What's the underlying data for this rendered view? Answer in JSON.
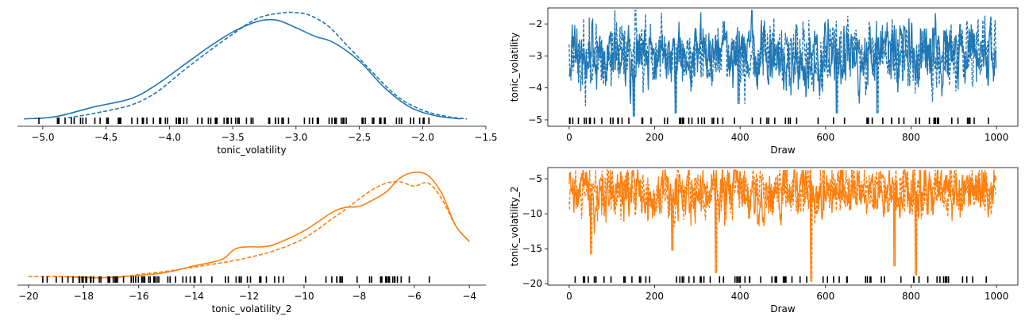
{
  "chart_data": [
    {
      "type": "area",
      "subtype": "kde",
      "xlabel": "tonic_volatility",
      "ylabel": "",
      "xlim": [
        -5.2,
        -1.5
      ],
      "ylim": [
        0,
        1.0
      ],
      "xticks": [
        -5.0,
        -4.5,
        -4.0,
        -3.5,
        -3.0,
        -2.5,
        -2.0,
        -1.5
      ],
      "xtick_labels": [
        "−5.0",
        "−4.5",
        "−4.0",
        "−3.5",
        "−3.0",
        "−2.5",
        "−2.0",
        "−1.5"
      ],
      "grid": false,
      "color": "#1f77b4",
      "series": [
        {
          "style": "solid",
          "x": [
            -5.15,
            -4.9,
            -4.6,
            -4.3,
            -4.1,
            -3.9,
            -3.7,
            -3.5,
            -3.3,
            -3.15,
            -3.0,
            -2.85,
            -2.7,
            -2.5,
            -2.3,
            -2.1,
            -1.9,
            -1.7
          ],
          "y": [
            0.01,
            0.03,
            0.12,
            0.2,
            0.33,
            0.5,
            0.67,
            0.82,
            0.92,
            0.93,
            0.86,
            0.78,
            0.72,
            0.55,
            0.3,
            0.12,
            0.04,
            0.01
          ]
        },
        {
          "style": "dashed",
          "x": [
            -4.8,
            -4.6,
            -4.3,
            -4.1,
            -3.9,
            -3.7,
            -3.5,
            -3.3,
            -3.1,
            -3.0,
            -2.9,
            -2.75,
            -2.6,
            -2.4,
            -2.2,
            -2.0,
            -1.8,
            -1.65
          ],
          "y": [
            0.02,
            0.06,
            0.14,
            0.26,
            0.45,
            0.63,
            0.8,
            0.95,
            1.0,
            1.0,
            0.98,
            0.88,
            0.7,
            0.45,
            0.22,
            0.09,
            0.03,
            0.01
          ]
        }
      ],
      "rug_ticks": 98
    },
    {
      "type": "line",
      "subtype": "trace",
      "xlabel": "Draw",
      "ylabel": "tonic_volatility",
      "xlim": [
        -50,
        1050
      ],
      "ylim": [
        -5.2,
        -1.5
      ],
      "xticks": [
        0,
        200,
        400,
        600,
        800,
        1000
      ],
      "xtick_labels": [
        "0",
        "200",
        "400",
        "600",
        "800",
        "1000"
      ],
      "yticks": [
        -5,
        -4,
        -3,
        -2
      ],
      "ytick_labels": [
        "−5",
        "−4",
        "−3",
        "−2"
      ],
      "grid": false,
      "color": "#1f77b4",
      "draws": 1000,
      "center": -3.0,
      "spread": 0.45,
      "low_spikes": [
        [
          150,
          -4.9
        ],
        [
          248,
          -4.8
        ],
        [
          395,
          -4.5
        ],
        [
          625,
          -4.8
        ],
        [
          720,
          -4.8
        ]
      ],
      "rug_ticks": 75
    },
    {
      "type": "area",
      "subtype": "kde",
      "xlabel": "tonic_volatility_2",
      "ylabel": "",
      "xlim": [
        -20.4,
        -3.4
      ],
      "ylim": [
        0,
        1.0
      ],
      "xticks": [
        -20,
        -18,
        -16,
        -14,
        -12,
        -10,
        -8,
        -6,
        -4
      ],
      "xtick_labels": [
        "−20",
        "−18",
        "−16",
        "−14",
        "−12",
        "−10",
        "−8",
        "−6",
        "−4"
      ],
      "grid": false,
      "color": "#ff7f0e",
      "series": [
        {
          "style": "solid",
          "x": [
            -18.7,
            -17.5,
            -16,
            -15,
            -14,
            -13,
            -12.5,
            -12,
            -11.5,
            -11,
            -10,
            -9,
            -8.5,
            -8,
            -7.5,
            -7,
            -6.5,
            -6,
            -5.5,
            -5,
            -4.5,
            -4
          ],
          "y": [
            0.02,
            0.01,
            0.03,
            0.06,
            0.12,
            0.18,
            0.28,
            0.3,
            0.3,
            0.33,
            0.45,
            0.62,
            0.67,
            0.68,
            0.74,
            0.82,
            0.95,
            1.0,
            0.97,
            0.8,
            0.5,
            0.35
          ]
        },
        {
          "style": "dashed",
          "x": [
            -20,
            -18.5,
            -17,
            -16,
            -15,
            -14,
            -13,
            -12,
            -11,
            -10,
            -9,
            -8.5,
            -8,
            -7.5,
            -7,
            -6.5,
            -6,
            -5.5,
            -5,
            -4.5,
            -4
          ],
          "y": [
            0.02,
            0.02,
            0.01,
            0.04,
            0.07,
            0.11,
            0.15,
            0.2,
            0.27,
            0.38,
            0.56,
            0.65,
            0.75,
            0.84,
            0.9,
            0.91,
            0.87,
            0.9,
            0.75,
            0.5,
            0.35
          ]
        }
      ],
      "rug_ticks": 96
    },
    {
      "type": "line",
      "subtype": "trace",
      "xlabel": "Draw",
      "ylabel": "tonic_volatility_2",
      "xlim": [
        -50,
        1050
      ],
      "ylim": [
        -20.2,
        -3.4
      ],
      "xticks": [
        0,
        200,
        400,
        600,
        800,
        1000
      ],
      "xtick_labels": [
        "0",
        "200",
        "400",
        "600",
        "800",
        "1000"
      ],
      "yticks": [
        -20,
        -15,
        -10,
        -5
      ],
      "ytick_labels": [
        "−20",
        "−15",
        "−10",
        "−5"
      ],
      "grid": false,
      "color": "#ff7f0e",
      "draws": 1000,
      "center": -6.8,
      "spread": 1.6,
      "low_spikes": [
        [
          50,
          -15.8
        ],
        [
          240,
          -15.3
        ],
        [
          342,
          -18.5
        ],
        [
          565,
          -19.8
        ],
        [
          760,
          -17.5
        ],
        [
          810,
          -18.8
        ]
      ],
      "rug_ticks": 75
    }
  ]
}
